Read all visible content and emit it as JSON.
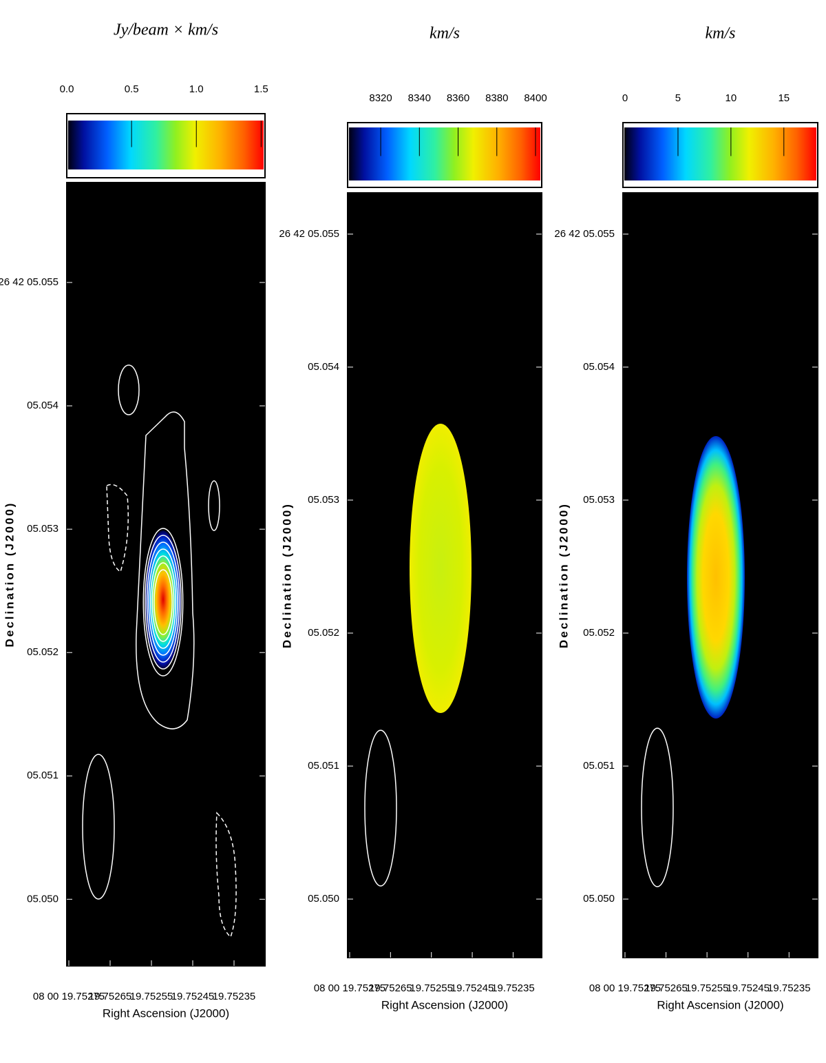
{
  "chart_data": [
    {
      "type": "image",
      "title": "Jy/beam × km/s",
      "colorbar_lim": [
        0,
        1.53
      ],
      "colorbar_ticks": [
        {
          "value": 0,
          "label": "0.0"
        },
        {
          "value": 0.5,
          "label": "0.5"
        },
        {
          "value": 1.0,
          "label": "1.0"
        },
        {
          "value": 1.5,
          "label": "1.5"
        }
      ],
      "x_label": "Right Ascension (J2000)",
      "y_label": "Declination (J2000)",
      "xlim": [
        19.752755,
        19.752275
      ],
      "xticks": [
        {
          "value": 19.75275,
          "label": "08 00 19.75275"
        },
        {
          "value": 19.75265,
          "label": "19.75265"
        },
        {
          "value": 19.75255,
          "label": "19.75255"
        },
        {
          "value": 19.75245,
          "label": "19.75245"
        },
        {
          "value": 19.75235,
          "label": "19.75235"
        }
      ],
      "ylim": [
        5.04946,
        5.05581
      ],
      "yticks": [
        {
          "value": 5.055,
          "label": "26 42 05.055"
        },
        {
          "value": 5.054,
          "label": "05.054"
        },
        {
          "value": 5.053,
          "label": "05.053"
        },
        {
          "value": 5.052,
          "label": "05.052"
        },
        {
          "value": 5.051,
          "label": "05.051"
        },
        {
          "value": 5.05,
          "label": "05.050"
        }
      ]
    },
    {
      "type": "image",
      "title": "km/s",
      "colorbar_lim": [
        8302.9,
        8403.2
      ],
      "colorbar_ticks": [
        8320,
        8340,
        8360,
        8380,
        8400
      ],
      "x_label": "Right Ascension (J2000)",
      "y_label": "Declination (J2000)",
      "xlim": [
        19.752755,
        19.75228
      ],
      "xticks": [
        {
          "value": 19.75275,
          "label": "08 00 19.75275"
        },
        {
          "value": 19.75265,
          "label": "19.75265"
        },
        {
          "value": 19.75255,
          "label": "19.75255"
        },
        {
          "value": 19.75245,
          "label": "19.75245"
        },
        {
          "value": 19.75235,
          "label": "19.75235"
        }
      ],
      "ylim": [
        5.04956,
        5.05531
      ],
      "yticks": [
        {
          "value": 5.055,
          "label": "26 42 05.055"
        },
        {
          "value": 5.054,
          "label": "05.054"
        },
        {
          "value": 5.053,
          "label": "05.053"
        },
        {
          "value": 5.052,
          "label": "05.052"
        },
        {
          "value": 5.051,
          "label": "05.051"
        },
        {
          "value": 5.05,
          "label": "05.050"
        }
      ]
    },
    {
      "type": "image",
      "title": "km/s",
      "colorbar_lim": [
        -0.2,
        18.2
      ],
      "colorbar_ticks": [
        0,
        5,
        10,
        15
      ],
      "x_label": "Right Ascension (J2000)",
      "y_label": "Declination (J2000)",
      "xlim": [
        19.752755,
        19.75228
      ],
      "xticks": [
        {
          "value": 19.75275,
          "label": "08 00 19.75275"
        },
        {
          "value": 19.75265,
          "label": "19.75265"
        },
        {
          "value": 19.75255,
          "label": "19.75255"
        },
        {
          "value": 19.75245,
          "label": "19.75245"
        },
        {
          "value": 19.75235,
          "label": "19.75235"
        }
      ],
      "ylim": [
        5.04956,
        5.05531
      ],
      "yticks": [
        {
          "value": 5.055,
          "label": "26 42 05.055"
        },
        {
          "value": 5.054,
          "label": "05.054"
        },
        {
          "value": 5.053,
          "label": "05.053"
        },
        {
          "value": 5.052,
          "label": "05.052"
        },
        {
          "value": 5.051,
          "label": "05.051"
        },
        {
          "value": 5.05,
          "label": "05.050"
        }
      ]
    }
  ]
}
